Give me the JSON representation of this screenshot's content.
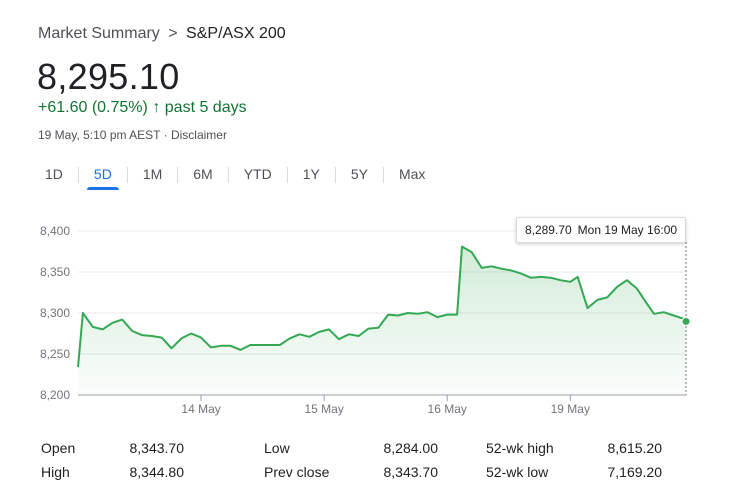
{
  "breadcrumb": {
    "parent": "Market Summary",
    "separator": ">",
    "current": "S&P/ASX 200"
  },
  "quote": {
    "price": "8,295.10",
    "change": "+61.60 (0.75%)",
    "arrow": "↑",
    "period": "past 5 days",
    "timestamp": "19 May, 5:10 pm AEST · Disclaimer",
    "positive_color": "#137333"
  },
  "tabs": [
    {
      "label": "1D",
      "active": false
    },
    {
      "label": "5D",
      "active": true
    },
    {
      "label": "1M",
      "active": false
    },
    {
      "label": "6M",
      "active": false
    },
    {
      "label": "YTD",
      "active": false
    },
    {
      "label": "1Y",
      "active": false
    },
    {
      "label": "5Y",
      "active": false
    },
    {
      "label": "Max",
      "active": false
    }
  ],
  "tooltip": {
    "value": "8,289.70",
    "datetime": "Mon 19 May 16:00"
  },
  "chart_data": {
    "type": "area",
    "line_color": "#34a853",
    "ylim": [
      8200,
      8400
    ],
    "y_ticks": [
      8200,
      8250,
      8300,
      8350,
      8400
    ],
    "y_tick_labels": [
      "8,200",
      "8,250",
      "8,300",
      "8,350",
      "8,400"
    ],
    "x_ticks": [
      1,
      2,
      3,
      4
    ],
    "x_tick_labels": [
      "14 May",
      "15 May",
      "16 May",
      "19 May"
    ],
    "xlim": [
      0,
      4.94
    ],
    "grid": true,
    "points": [
      [
        0,
        8234
      ],
      [
        0.04,
        8300
      ],
      [
        0.12,
        8283
      ],
      [
        0.2,
        8280
      ],
      [
        0.28,
        8288
      ],
      [
        0.36,
        8292
      ],
      [
        0.44,
        8278
      ],
      [
        0.52,
        8273
      ],
      [
        0.6,
        8272
      ],
      [
        0.68,
        8270
      ],
      [
        0.76,
        8257
      ],
      [
        0.84,
        8269
      ],
      [
        0.92,
        8275
      ],
      [
        1.0,
        8270
      ],
      [
        1.08,
        8258
      ],
      [
        1.16,
        8260
      ],
      [
        1.24,
        8260
      ],
      [
        1.32,
        8255
      ],
      [
        1.4,
        8261
      ],
      [
        1.52,
        8261
      ],
      [
        1.64,
        8261
      ],
      [
        1.72,
        8269
      ],
      [
        1.8,
        8274
      ],
      [
        1.88,
        8271
      ],
      [
        1.96,
        8277
      ],
      [
        2.04,
        8280
      ],
      [
        2.12,
        8268
      ],
      [
        2.2,
        8274
      ],
      [
        2.28,
        8272
      ],
      [
        2.36,
        8281
      ],
      [
        2.44,
        8282
      ],
      [
        2.52,
        8298
      ],
      [
        2.6,
        8297
      ],
      [
        2.68,
        8300
      ],
      [
        2.76,
        8299
      ],
      [
        2.84,
        8301
      ],
      [
        2.92,
        8295
      ],
      [
        3.0,
        8298
      ],
      [
        3.08,
        8298
      ],
      [
        3.12,
        8381
      ],
      [
        3.2,
        8374
      ],
      [
        3.28,
        8355
      ],
      [
        3.36,
        8357
      ],
      [
        3.44,
        8354
      ],
      [
        3.52,
        8352
      ],
      [
        3.6,
        8348
      ],
      [
        3.68,
        8343
      ],
      [
        3.76,
        8344
      ],
      [
        3.84,
        8343
      ],
      [
        3.92,
        8340
      ],
      [
        4.0,
        8338
      ],
      [
        4.06,
        8344
      ],
      [
        4.14,
        8306
      ],
      [
        4.22,
        8316
      ],
      [
        4.3,
        8319
      ],
      [
        4.38,
        8332
      ],
      [
        4.46,
        8340
      ],
      [
        4.54,
        8330
      ],
      [
        4.62,
        8312
      ],
      [
        4.68,
        8299
      ],
      [
        4.76,
        8301
      ],
      [
        4.84,
        8297
      ],
      [
        4.92,
        8293
      ],
      [
        4.94,
        8289.7
      ]
    ]
  },
  "stats": {
    "open_label": "Open",
    "open_value": "8,343.70",
    "high_label": "High",
    "high_value": "8,344.80",
    "low_label": "Low",
    "low_value": "8,284.00",
    "prev_close_label": "Prev close",
    "prev_close_value": "8,343.70",
    "wk52_high_label": "52-wk high",
    "wk52_high_value": "8,615.20",
    "wk52_low_label": "52-wk low",
    "wk52_low_value": "7,169.20"
  }
}
